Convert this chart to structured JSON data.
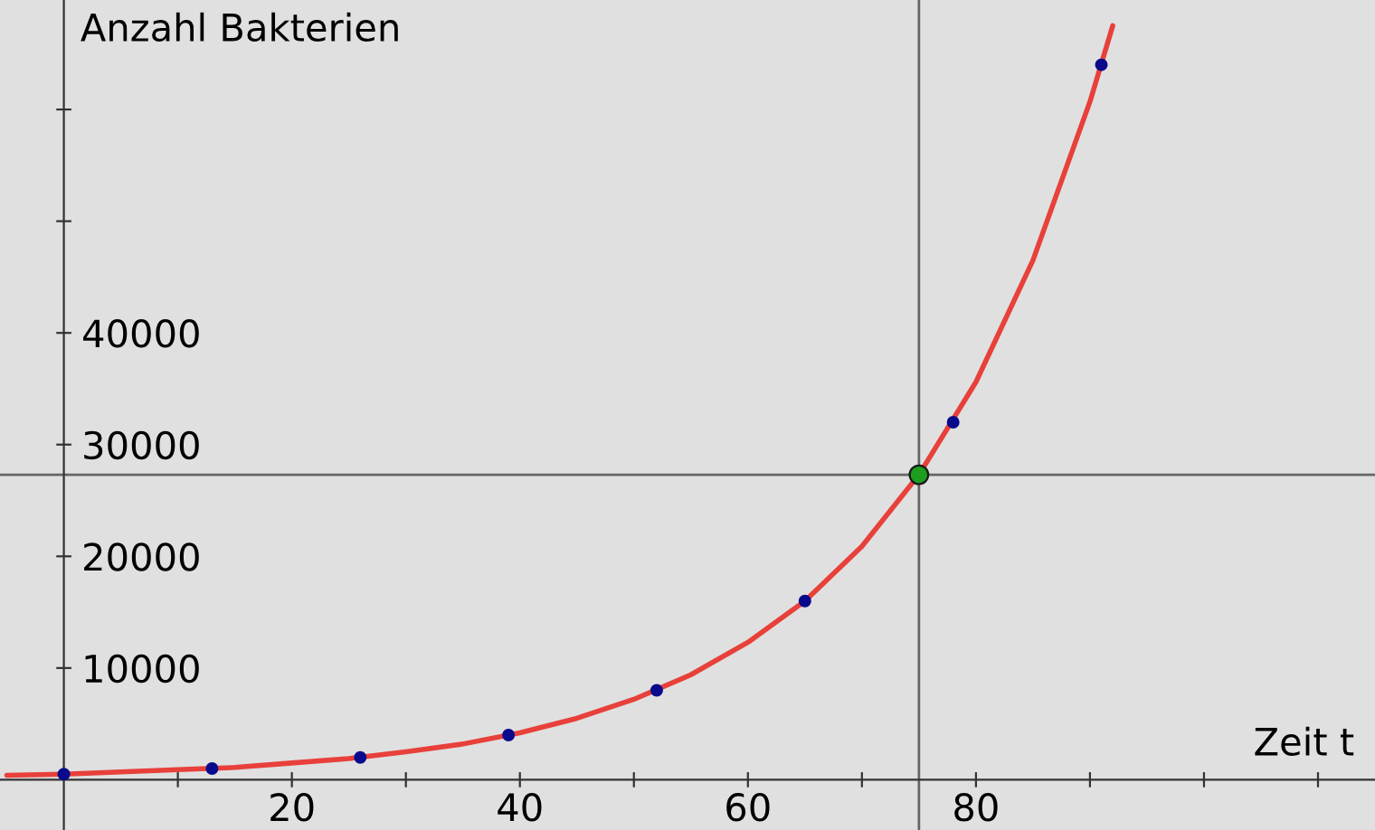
{
  "chart_data": {
    "type": "line",
    "xlabel": "Zeit t",
    "ylabel": "Anzahl Bakterien",
    "xlim": [
      -5.6,
      115
    ],
    "ylim": [
      -4500,
      69800
    ],
    "xticks": [
      {
        "value": 10,
        "label": null
      },
      20,
      {
        "value": 30,
        "label": null
      },
      40,
      {
        "value": 50,
        "label": null
      },
      60,
      {
        "value": 70,
        "label": null
      },
      80,
      {
        "value": 90,
        "label": null
      },
      {
        "value": 100,
        "label": null
      },
      {
        "value": 110,
        "label": null
      }
    ],
    "yticks": [
      10000,
      20000,
      30000,
      40000,
      {
        "value": 50000,
        "label": null
      },
      {
        "value": 60000,
        "label": null
      }
    ],
    "grid": false,
    "series": [
      {
        "color": "#e8403a",
        "x": [
          -5,
          0,
          5,
          10,
          15,
          20,
          25,
          30,
          35,
          40,
          45,
          50,
          55,
          60,
          65,
          70,
          75,
          80,
          85,
          90,
          92
        ],
        "values": [
          400,
          500,
          700,
          900,
          1100,
          1500,
          1900,
          2500,
          3200,
          4200,
          5500,
          7200,
          9400,
          12300,
          16000,
          20900,
          27300,
          35600,
          46500,
          60700,
          67500
        ]
      },
      {
        "type": "scatter",
        "color": "#0a0a8c",
        "x": [
          0,
          13,
          26,
          39,
          52,
          65,
          78,
          91
        ],
        "values": [
          500,
          1000,
          2000,
          4000,
          8000,
          16000,
          32000,
          64000
        ]
      },
      {
        "type": "scatter",
        "color": "#1e9e1e",
        "x": [
          75
        ],
        "values": [
          27300
        ]
      }
    ],
    "ref_lines": [
      {
        "axis": "x",
        "value": 75,
        "color": "#666666"
      },
      {
        "axis": "y",
        "value": 27300,
        "color": "#666666"
      }
    ]
  }
}
